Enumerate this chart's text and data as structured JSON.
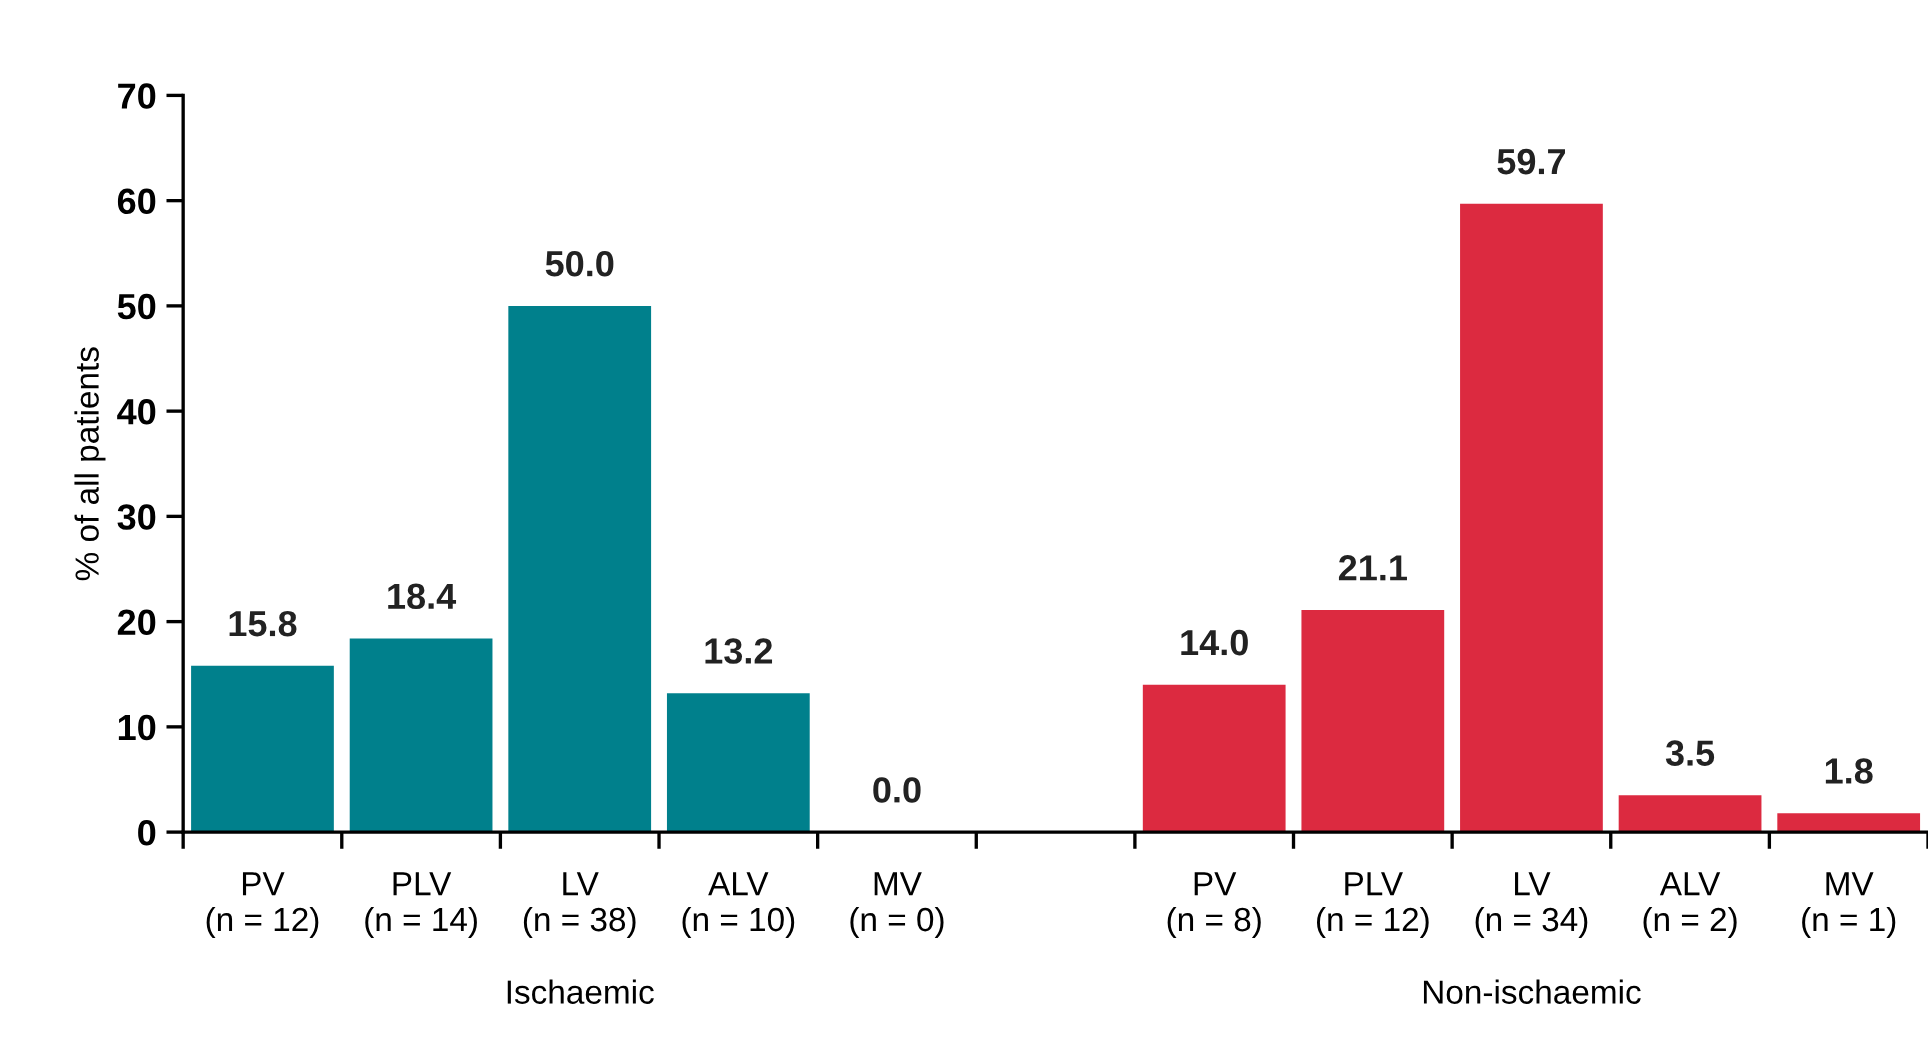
{
  "chart_data": {
    "type": "bar",
    "ylabel": "% of all patients",
    "categories": [
      "PV\n(n = 12)",
      "PLV\n(n = 14)",
      "LV\n(n = 38)",
      "ALV\n(n = 10)",
      "MV\n(n = 0)",
      null,
      "PV\n(n = 8)",
      "PLV\n(n = 12)",
      "LV\n(n = 34)",
      "ALV\n(n = 2)",
      "MV\n(n = 1)"
    ],
    "values": [
      15.8,
      18.4,
      50.0,
      13.2,
      0.0,
      null,
      14.0,
      21.1,
      59.7,
      3.5,
      1.8
    ],
    "value_labels": [
      "15.8",
      "18.4",
      "50.0",
      "13.2",
      "0.0",
      null,
      "14.0",
      "21.1",
      "59.7",
      "3.5",
      "1.8"
    ],
    "colors": [
      "#00808c",
      "#00808c",
      "#00808c",
      "#00808c",
      "#00808c",
      null,
      "#dc2a40",
      "#dc2a40",
      "#dc2a40",
      "#dc2a40",
      "#dc2a40"
    ],
    "annotations": [
      "Ischaemic",
      "Non-ischaemic"
    ],
    "ylim": [
      0,
      70
    ],
    "yticks": [
      0,
      10,
      20,
      30,
      40,
      50,
      60,
      70
    ],
    "grid": false
  }
}
